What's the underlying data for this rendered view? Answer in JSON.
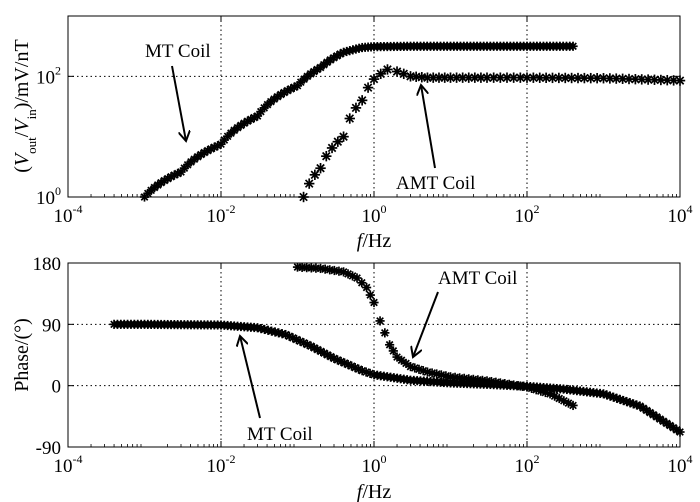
{
  "chart_data": [
    {
      "type": "scatter",
      "panel": "top",
      "xlabel": "f/Hz",
      "ylabel_parts": [
        "(V",
        "out",
        "/V",
        "in",
        ")/mV/nT"
      ],
      "x_scale": "log",
      "y_scale": "log",
      "xlim": [
        0.0001,
        10000
      ],
      "ylim": [
        1,
        1000
      ],
      "x_ticks": [
        {
          "value": 0.0001,
          "base": "10",
          "exp": "-4"
        },
        {
          "value": 0.01,
          "base": "10",
          "exp": "-2"
        },
        {
          "value": 1,
          "base": "10",
          "exp": "0"
        },
        {
          "value": 100,
          "base": "10",
          "exp": "2"
        },
        {
          "value": 10000,
          "base": "10",
          "exp": "4"
        }
      ],
      "y_ticks": [
        {
          "value": 1,
          "base": "10",
          "exp": "0"
        },
        {
          "value": 100,
          "base": "10",
          "exp": "2"
        }
      ],
      "grid": "dotted at labeled ticks",
      "series": [
        {
          "name": "MT Coil",
          "x": [
            0.001,
            0.003,
            0.01,
            0.03,
            0.1,
            0.2,
            0.4,
            0.7,
            1,
            3,
            10,
            30,
            100,
            400
          ],
          "y": [
            1,
            2.6,
            7.5,
            22,
            70,
            140,
            250,
            300,
            310,
            315,
            315,
            315,
            315,
            315
          ]
        },
        {
          "name": "AMT Coil",
          "x": [
            0.12,
            0.2,
            0.4,
            0.7,
            1,
            1.5,
            2,
            3,
            5,
            10,
            30,
            100,
            1000,
            10000
          ],
          "y": [
            1,
            3,
            10,
            40,
            90,
            130,
            120,
            100,
            95,
            95,
            95,
            95,
            93,
            85
          ]
        }
      ],
      "annotations": [
        {
          "text": "MT Coil",
          "points_to": {
            "x": 0.003,
            "y": 3.2
          }
        },
        {
          "text": "AMT Coil",
          "points_to": {
            "x": 3.2,
            "y": 120
          }
        }
      ]
    },
    {
      "type": "scatter",
      "panel": "bottom",
      "xlabel": "f/Hz",
      "ylabel": "Phase/(°)",
      "x_scale": "log",
      "xlim": [
        0.0001,
        10000
      ],
      "ylim": [
        -90,
        180
      ],
      "x_ticks": [
        {
          "value": 0.0001,
          "base": "10",
          "exp": "-4"
        },
        {
          "value": 0.01,
          "base": "10",
          "exp": "-2"
        },
        {
          "value": 1,
          "base": "10",
          "exp": "0"
        },
        {
          "value": 100,
          "base": "10",
          "exp": "2"
        },
        {
          "value": 10000,
          "base": "10",
          "exp": "4"
        }
      ],
      "y_ticks": [
        {
          "value": 180,
          "label": "180"
        },
        {
          "value": 90,
          "label": "90"
        },
        {
          "value": 0,
          "label": "0"
        },
        {
          "value": -90,
          "label": "-90"
        }
      ],
      "grid": "dotted at labeled ticks",
      "series": [
        {
          "name": "MT Coil",
          "x": [
            0.0004,
            0.001,
            0.003,
            0.01,
            0.03,
            0.07,
            0.15,
            0.3,
            0.7,
            1,
            3,
            10,
            30,
            100,
            300,
            1000,
            3000,
            10000
          ],
          "y": [
            90,
            90,
            89.5,
            89,
            85,
            75,
            58,
            40,
            22,
            16,
            8,
            4,
            2,
            -1,
            -5,
            -12,
            -30,
            -68
          ]
        },
        {
          "name": "AMT Coil",
          "x": [
            0.1,
            0.2,
            0.4,
            0.6,
            0.8,
            1,
            1.2,
            1.6,
            2,
            3,
            5,
            10,
            30,
            100,
            200,
            400
          ],
          "y": [
            174,
            172,
            167,
            158,
            144,
            122,
            95,
            60,
            42,
            28,
            20,
            13,
            7,
            -2,
            -12,
            -29
          ]
        }
      ],
      "annotations": [
        {
          "text": "AMT Coil",
          "points_to": {
            "x": 2.7,
            "y": 38
          }
        },
        {
          "text": "MT Coil",
          "points_to": {
            "x": 0.022,
            "y": 78
          }
        }
      ]
    }
  ]
}
